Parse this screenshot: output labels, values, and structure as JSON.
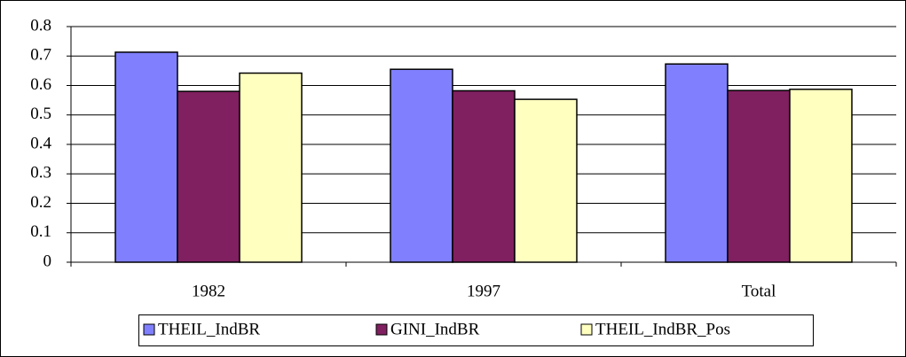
{
  "chart_data": {
    "type": "bar",
    "categories": [
      "1982",
      "1997",
      "Total"
    ],
    "series": [
      {
        "name": "THEIL_IndBR",
        "color": "#8080ff",
        "values": [
          0.713,
          0.655,
          0.673
        ]
      },
      {
        "name": "GINI_IndBR",
        "color": "#802060",
        "values": [
          0.58,
          0.582,
          0.583
        ]
      },
      {
        "name": "THEIL_IndBR_Pos",
        "color": "#ffffc0",
        "values": [
          0.642,
          0.553,
          0.587
        ]
      }
    ],
    "ylim": [
      0,
      0.8
    ],
    "yticks": [
      0,
      0.1,
      0.2,
      0.3,
      0.4,
      0.5,
      0.6,
      0.7,
      0.8
    ],
    "grid": true,
    "legend": "bottom"
  }
}
